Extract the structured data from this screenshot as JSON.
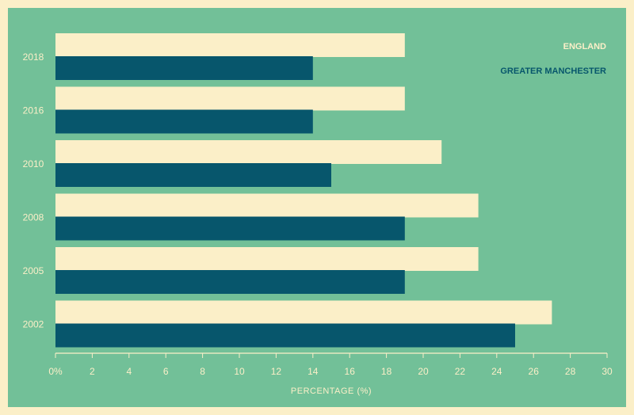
{
  "chart_data": {
    "type": "bar",
    "orientation": "horizontal",
    "categories": [
      "2018",
      "2016",
      "2010",
      "2008",
      "2005",
      "2002"
    ],
    "series": [
      {
        "name": "ENGLAND",
        "color": "#fbefc8",
        "values": [
          19,
          19,
          21,
          23,
          23,
          27
        ]
      },
      {
        "name": "GREATER MANCHESTER",
        "color": "#07566c",
        "values": [
          14,
          14,
          15,
          19,
          19,
          25
        ]
      }
    ],
    "xlabel": "PERCENTAGE (%)",
    "xlim": [
      0,
      30
    ],
    "xticks": [
      "0%",
      "2",
      "4",
      "6",
      "8",
      "10",
      "12",
      "14",
      "16",
      "18",
      "20",
      "22",
      "24",
      "26",
      "28",
      "30"
    ],
    "legend_position": "top-right",
    "colors": {
      "background": "#72c098",
      "border": "#fbefc8",
      "text": "#fbefc8"
    }
  }
}
